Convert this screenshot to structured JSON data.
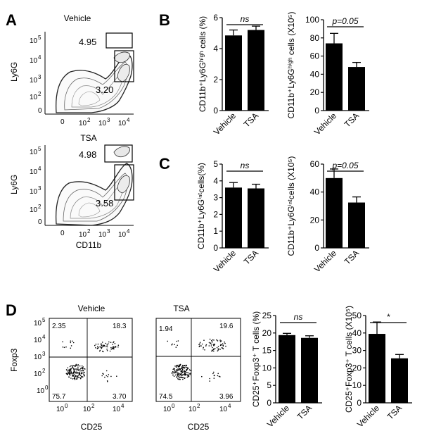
{
  "panel_labels": {
    "A": "A",
    "B": "B",
    "C": "C",
    "D": "D"
  },
  "flow_A": [
    {
      "condition": "Vehicle",
      "y_axis": "Ly6G",
      "x_axis": "",
      "gate_high": "4.95",
      "gate_int": "3.20"
    },
    {
      "condition": "TSA",
      "y_axis": "Ly6G",
      "x_axis": "CD11b",
      "gate_high": "4.98",
      "gate_int": "3.58"
    }
  ],
  "flow_axis_ticks": {
    "exponent_labels": [
      "10",
      "10",
      "10",
      "10"
    ],
    "exponents": [
      "5",
      "4",
      "3",
      "2",
      "0",
      "2",
      "3",
      "4"
    ],
    "y_tick_exps": [
      "5",
      "4",
      "3",
      "2"
    ],
    "x_tick_exps": [
      "2",
      "3",
      "4"
    ],
    "zero": "0"
  },
  "flow_D": [
    {
      "condition": "Vehicle",
      "y_axis": "Foxp3",
      "x_axis": "CD25",
      "q_ul": "2.35",
      "q_ur": "18.3",
      "q_ll": "75.7",
      "q_lr": "3.70"
    },
    {
      "condition": "TSA",
      "y_axis": "",
      "x_axis": "CD25",
      "q_ul": "1.94",
      "q_ur": "19.6",
      "q_ll": "74.5",
      "q_lr": "3.96"
    }
  ],
  "chart_data": [
    {
      "id": "B-percent",
      "type": "bar",
      "categories": [
        "Vehicle",
        "TSA"
      ],
      "values": [
        4.85,
        5.2
      ],
      "errors": [
        0.35,
        0.25
      ],
      "ylim": [
        0,
        6
      ],
      "yticks": [
        "0",
        "2",
        "4",
        "6"
      ],
      "ylabel": "CD11b⁺Ly6Gʰⁱᵍʰ cells (%)",
      "significance": "ns"
    },
    {
      "id": "B-number",
      "type": "bar",
      "categories": [
        "Vehicle",
        "TSA"
      ],
      "values": [
        74,
        48
      ],
      "errors": [
        11,
        5
      ],
      "ylim": [
        0,
        100
      ],
      "yticks": [
        "0",
        "20",
        "40",
        "60",
        "80",
        "100"
      ],
      "ylabel": "CD11b⁺Ly6Gʰⁱᵍʰ cells (X10⁵)",
      "significance": "p=0.05"
    },
    {
      "id": "C-percent",
      "type": "bar",
      "categories": [
        "Vehicle",
        "TSA"
      ],
      "values": [
        3.6,
        3.55
      ],
      "errors": [
        0.3,
        0.25
      ],
      "ylim": [
        0,
        5
      ],
      "yticks": [
        "0",
        "1",
        "2",
        "3",
        "4",
        "5"
      ],
      "ylabel": "CD11b⁺Ly6Gⁱⁿᵗcells(%)",
      "significance": "ns"
    },
    {
      "id": "C-number",
      "type": "bar",
      "categories": [
        "Vehicle",
        "TSA"
      ],
      "values": [
        50,
        32.5
      ],
      "errors": [
        6.5,
        4
      ],
      "ylim": [
        0,
        60
      ],
      "yticks": [
        "0",
        "20",
        "40",
        "60"
      ],
      "ylabel": "CD11b⁺Ly6Gⁱⁿᵗcells (X10⁵)",
      "significance": "p=0.05"
    },
    {
      "id": "D-percent",
      "type": "bar",
      "categories": [
        "Vehicle",
        "TSA"
      ],
      "values": [
        19.4,
        18.6
      ],
      "errors": [
        0.5,
        0.6
      ],
      "ylim": [
        0,
        25
      ],
      "yticks": [
        "0",
        "5",
        "10",
        "15",
        "20",
        "25"
      ],
      "ylabel": "CD25⁺Foxp3⁺ T cells (%)",
      "significance": "ns"
    },
    {
      "id": "D-number",
      "type": "bar",
      "categories": [
        "Vehicle",
        "TSA"
      ],
      "values": [
        39.5,
        25.5
      ],
      "errors": [
        6.8,
        2.2
      ],
      "ylim": [
        0,
        50
      ],
      "yticks": [
        "0",
        "10",
        "20",
        "30",
        "40",
        "50"
      ],
      "ylabel": "CD25⁺Foxp3⁺ T cells (X10⁵)",
      "significance": "*"
    }
  ]
}
